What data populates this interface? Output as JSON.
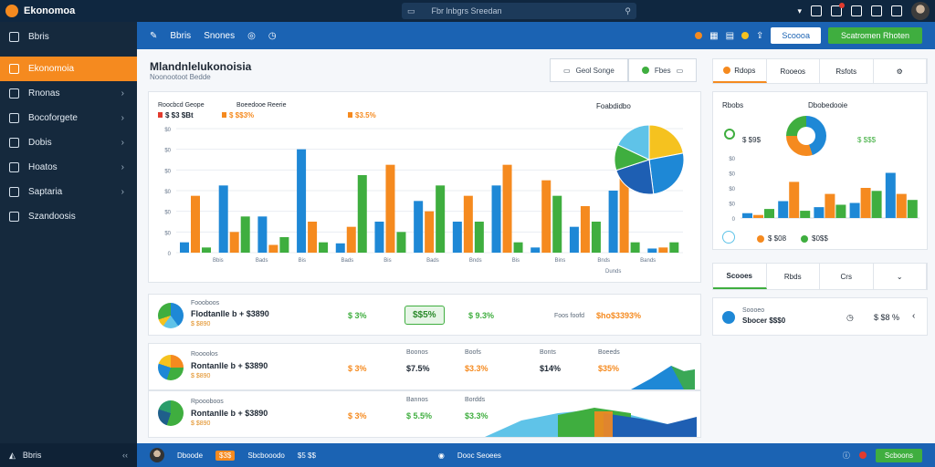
{
  "app": {
    "name": "Ekonomoa"
  },
  "search": {
    "placeholder": "Fbr lnbgrs Sreedan"
  },
  "sidebar": {
    "header": "Bbris",
    "items": [
      {
        "label": "Ekonomoia",
        "icon": "dashboard-icon",
        "active": true
      },
      {
        "label": "Rnonas",
        "icon": "money-icon"
      },
      {
        "label": "Bocoforgete",
        "icon": "calendar-icon"
      },
      {
        "label": "Dobis",
        "icon": "globe-icon"
      },
      {
        "label": "Hoatos",
        "icon": "list-icon"
      },
      {
        "label": "Saptaria",
        "icon": "report-icon"
      },
      {
        "label": "Szandoosis",
        "icon": "chart-icon"
      }
    ],
    "footer": "Bbris"
  },
  "subbar": {
    "links": [
      "Bbris",
      "Snones"
    ],
    "button1": "Scoooa",
    "button2": "Scatromen Rhoten"
  },
  "title": {
    "main": "Mlandnlelukonoisia",
    "sub": "Noonootoot Bedde"
  },
  "title_actions": [
    "Geol Songe",
    "Fbes"
  ],
  "main_chart": {
    "legend_title": "Roocbcd Geope",
    "legend_title2": "Boeedooe Reerie",
    "legend_items": [
      "$ $3 $Bt",
      "$ $$3%",
      "$3.5%"
    ],
    "pie_title": "Foabdidbo",
    "xlabel": "Dunds",
    "x_ticks": [
      "Bbis",
      "Bads",
      "Bis",
      "Bads",
      "Bis",
      "Bads",
      "Bnds",
      "Bis",
      "Bins",
      "Bnds",
      "Bands"
    ]
  },
  "chart_data": [
    {
      "type": "bar",
      "title": "",
      "ylim": [
        0,
        240
      ],
      "y_ticks": [
        "0",
        "$0",
        "$0",
        "$0",
        "$0",
        "$0",
        "$0"
      ],
      "series": [
        {
          "color": "#1e88d6",
          "values": [
            20,
            130,
            70,
            200,
            18,
            60,
            100,
            60,
            130,
            10,
            50,
            120,
            8
          ]
        },
        {
          "color": "#f58a1f",
          "values": [
            110,
            40,
            15,
            60,
            50,
            170,
            80,
            110,
            170,
            140,
            90,
            170,
            10
          ]
        },
        {
          "color": "#3fae3f",
          "values": [
            10,
            70,
            30,
            20,
            150,
            40,
            130,
            60,
            20,
            110,
            60,
            20,
            20
          ]
        }
      ]
    },
    {
      "type": "bar",
      "title": "",
      "ylim": [
        0,
        100
      ],
      "y_ticks": [
        "0",
        "$0",
        "$0",
        "$0",
        "$0"
      ],
      "series": [
        {
          "color": "#1e88d6",
          "values": [
            8,
            28,
            18,
            25,
            75
          ]
        },
        {
          "color": "#f58a1f",
          "values": [
            5,
            60,
            40,
            50,
            40
          ]
        },
        {
          "color": "#3fae3f",
          "values": [
            15,
            12,
            22,
            45,
            30
          ]
        }
      ]
    }
  ],
  "rows": [
    {
      "label": "Foooboos",
      "main": "Flodtanlle b + $3890",
      "sub": "$ $890",
      "v1": "$ 3%",
      "badge": "$$5%",
      "v2": "$ 9.3%",
      "v3": "Foos foofd",
      "v4": "$ho$3393%"
    },
    {
      "label": "Roooolos",
      "main": "Rontanlle b + $3890",
      "sub": "$ $890",
      "heads": [
        "Boonos",
        "Boofs",
        "Bonts",
        "Boeeds"
      ],
      "v1": "$ 3%",
      "v2": "$7.5%",
      "v3": "$3.3%",
      "v4": "$14%",
      "v5": "$35%"
    },
    {
      "label": "Rpoooboos",
      "main": "Rontanlle b + $3890",
      "sub": "$ $890",
      "heads": [
        "Bannos",
        "Bordds"
      ],
      "v1": "$ 3%",
      "v2": "$ 5.5%",
      "v3": "$3.3%"
    }
  ],
  "right_panel": {
    "tabs": [
      "Rdops",
      "Rooeos",
      "Rsfots"
    ],
    "chart_label1": "Rbobs",
    "chart_label2": "Dbobedooie",
    "value1": "$ $9$",
    "value2": "$ $$$",
    "footer_v1": "$ $08",
    "footer_v2": "$0$$",
    "filters": [
      "Scooes",
      "Rbds",
      "Crs"
    ],
    "item_label": "Soooeo",
    "item_sub": "Sbocer $$$0",
    "item_val": "$ $8 %"
  },
  "footer": {
    "name": "Dboode",
    "badge": "$3$",
    "text": "Sbcbooodo",
    "count": "$5 $$",
    "center": "Dooc Seoees",
    "button": "Scboons"
  },
  "colors": {
    "blue": "#1e88d6",
    "orange": "#f58a1f",
    "green": "#3fae3f",
    "navy": "#15293d"
  }
}
